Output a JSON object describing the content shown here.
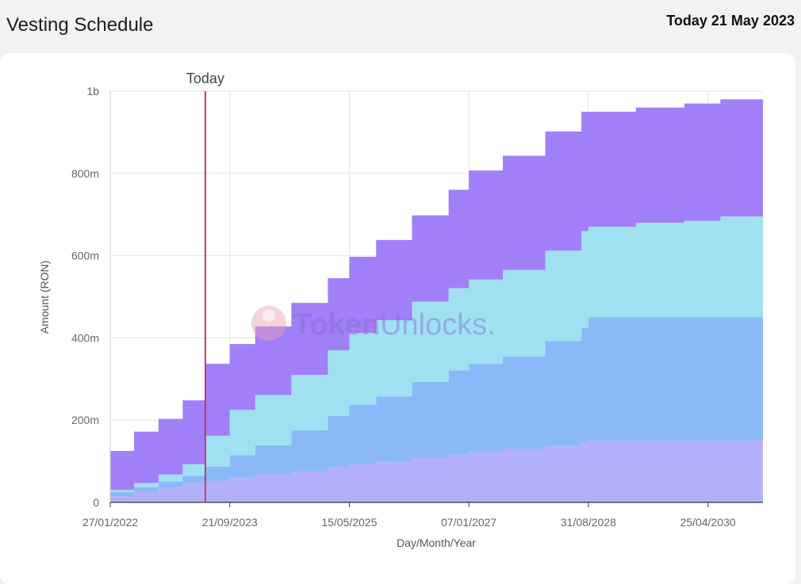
{
  "header": {
    "title": "Vesting Schedule",
    "today_text": "Today 21 May 2023"
  },
  "watermark": {
    "brand_bold": "Token",
    "brand_light": "Unlocks."
  },
  "chart_data": {
    "type": "area",
    "stacked": true,
    "xlabel": "Day/Month/Year",
    "ylabel": "Amount (RON)",
    "x_ticks": [
      "27/01/2022",
      "21/09/2023",
      "15/05/2025",
      "07/01/2027",
      "31/08/2028",
      "25/04/2030"
    ],
    "y_ticks": [
      "0",
      "200m",
      "400m",
      "600m",
      "800m",
      "1b"
    ],
    "xlim": [
      "2022-01-27",
      "2031-01-27"
    ],
    "ylim": [
      0,
      1000
    ],
    "y_unit": "millions RON",
    "grid": true,
    "today_marker": {
      "date": "2023-05-21",
      "label": "Today"
    },
    "colors": [
      "#b3b0fb",
      "#8bb8f9",
      "#9fe1f0",
      "#a17ff8"
    ],
    "x": [
      "2022-01-27",
      "2022-05-27",
      "2022-09-27",
      "2023-01-27",
      "2023-05-21",
      "2023-09-21",
      "2024-01-27",
      "2024-07-27",
      "2025-01-27",
      "2025-05-15",
      "2025-09-27",
      "2026-03-27",
      "2026-09-27",
      "2027-01-07",
      "2027-06-27",
      "2028-01-27",
      "2028-07-27",
      "2028-08-31",
      "2029-04-27",
      "2029-12-27",
      "2030-06-27",
      "2031-01-27"
    ],
    "series": [
      {
        "values": [
          15,
          25,
          35,
          45,
          52,
          60,
          66,
          75,
          85,
          92,
          98,
          108,
          116,
          122,
          130,
          137,
          145,
          150,
          150,
          150,
          150,
          150
        ]
      },
      {
        "values": [
          10,
          12,
          15,
          20,
          35,
          55,
          73,
          100,
          125,
          145,
          160,
          185,
          205,
          215,
          225,
          255,
          280,
          300,
          300,
          300,
          300,
          300
        ]
      },
      {
        "values": [
          5,
          10,
          18,
          28,
          75,
          110,
          122,
          135,
          160,
          175,
          185,
          195,
          200,
          205,
          210,
          220,
          235,
          220,
          230,
          235,
          245,
          250
        ]
      },
      {
        "values": [
          95,
          125,
          135,
          155,
          175,
          160,
          167,
          175,
          175,
          185,
          195,
          210,
          239,
          265,
          278,
          290,
          290,
          280,
          280,
          285,
          285,
          300
        ]
      }
    ]
  }
}
